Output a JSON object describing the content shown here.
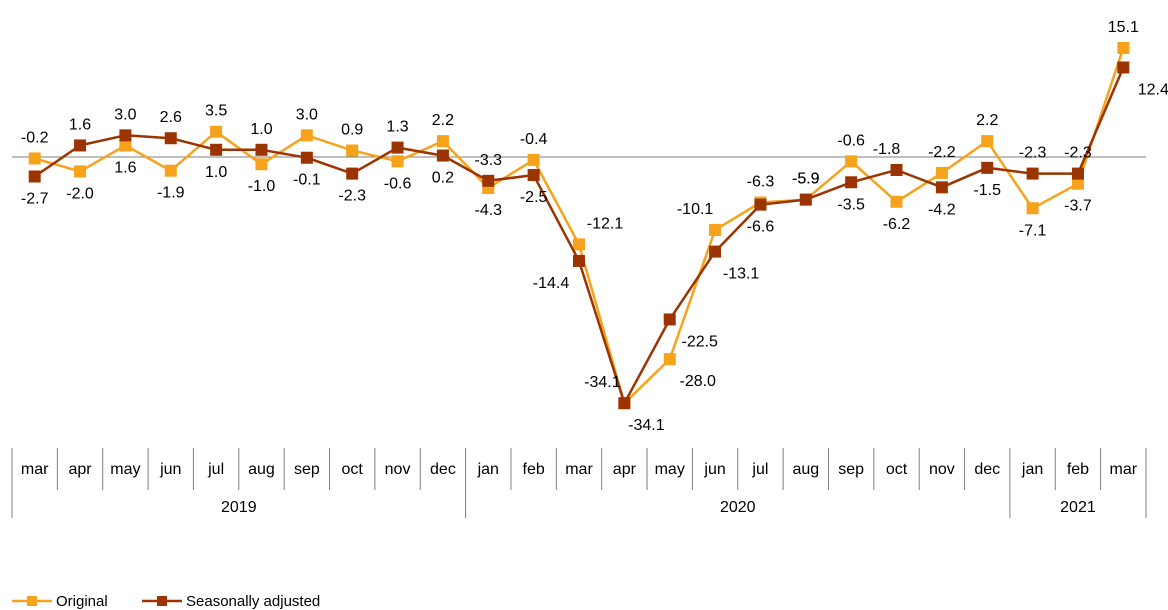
{
  "chart_data": {
    "type": "line",
    "categories": [
      "mar",
      "apr",
      "may",
      "jun",
      "jul",
      "aug",
      "sep",
      "oct",
      "nov",
      "dec",
      "jan",
      "feb",
      "mar",
      "apr",
      "may",
      "jun",
      "jul",
      "aug",
      "sep",
      "oct",
      "nov",
      "dec",
      "jan",
      "feb",
      "mar"
    ],
    "years": [
      {
        "label": "2019",
        "start": 0,
        "end": 9
      },
      {
        "label": "2020",
        "start": 10,
        "end": 21
      },
      {
        "label": "2021",
        "start": 22,
        "end": 24
      }
    ],
    "series": [
      {
        "name": "Original",
        "color": "#F7A21B",
        "values": [
          -0.2,
          -2.0,
          1.6,
          -1.9,
          3.5,
          -1.0,
          3.0,
          0.9,
          -0.6,
          2.2,
          -4.3,
          -0.4,
          -12.1,
          -34.1,
          -28.0,
          -10.1,
          -6.3,
          -5.9,
          -0.6,
          -6.2,
          -2.2,
          2.2,
          -7.1,
          -3.7,
          15.1
        ],
        "labels": [
          "-0.2",
          "-2.0",
          "1.6",
          "-1.9",
          "3.5",
          "-1.0",
          "3.0",
          "0.9",
          "-0.6",
          "2.2",
          "-4.3",
          "-0.4",
          "-12.1",
          "-34.1",
          "-28.0",
          "-10.1",
          "-6.3",
          "-5.9",
          "-0.6",
          "-6.2",
          "-2.2",
          "2.2",
          "-7.1",
          "-3.7",
          "15.1"
        ]
      },
      {
        "name": "Seasonally adjusted",
        "color": "#9B3400",
        "values": [
          -2.7,
          1.6,
          3.0,
          2.6,
          1.0,
          1.0,
          -0.1,
          -2.3,
          1.3,
          0.2,
          -3.3,
          -2.5,
          -14.4,
          -34.1,
          -22.5,
          -13.1,
          -6.6,
          -5.9,
          -3.5,
          -1.8,
          -4.2,
          -1.5,
          -2.3,
          -2.3,
          12.4
        ],
        "labels": [
          "-2.7",
          "1.6",
          "3.0",
          "2.6",
          "1.0",
          "1.0",
          "-0.1",
          "-2.3",
          "1.3",
          "0.2",
          "-3.3",
          "-2.5",
          "-14.4",
          "-34.1",
          "-22.5",
          "-13.1",
          "-6.6",
          "-5.9",
          "-3.5",
          "-1.8",
          "-4.2",
          "-1.5",
          "-2.3",
          "-2.3",
          "12.4"
        ]
      }
    ],
    "title": "",
    "xlabel": "",
    "ylabel": "",
    "ylim": [
      -38,
      22
    ],
    "grid": false,
    "legend": "bottom-left"
  }
}
